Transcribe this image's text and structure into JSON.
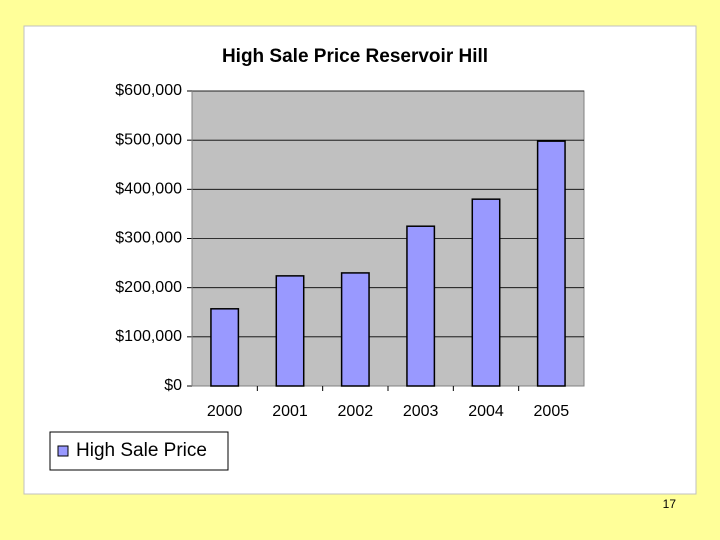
{
  "chart_data": {
    "type": "bar",
    "title": "High Sale Price Reservoir Hill",
    "categories": [
      "2000",
      "2001",
      "2002",
      "2003",
      "2004",
      "2005"
    ],
    "series": [
      {
        "name": "High Sale Price",
        "color": "#9999ff",
        "values": [
          157000,
          224000,
          230000,
          325000,
          380000,
          498000
        ]
      }
    ],
    "ylim": [
      0,
      600000
    ],
    "yticks": [
      {
        "value": 0,
        "label": "$0"
      },
      {
        "value": 100000,
        "label": "$100,000"
      },
      {
        "value": 200000,
        "label": "$200,000"
      },
      {
        "value": 300000,
        "label": "$300,000"
      },
      {
        "value": 400000,
        "label": "$400,000"
      },
      {
        "value": 500000,
        "label": "$500,000"
      },
      {
        "value": 600000,
        "label": "$600,000"
      }
    ],
    "grid": true,
    "legend": "bottom-left"
  },
  "page_number": 17
}
